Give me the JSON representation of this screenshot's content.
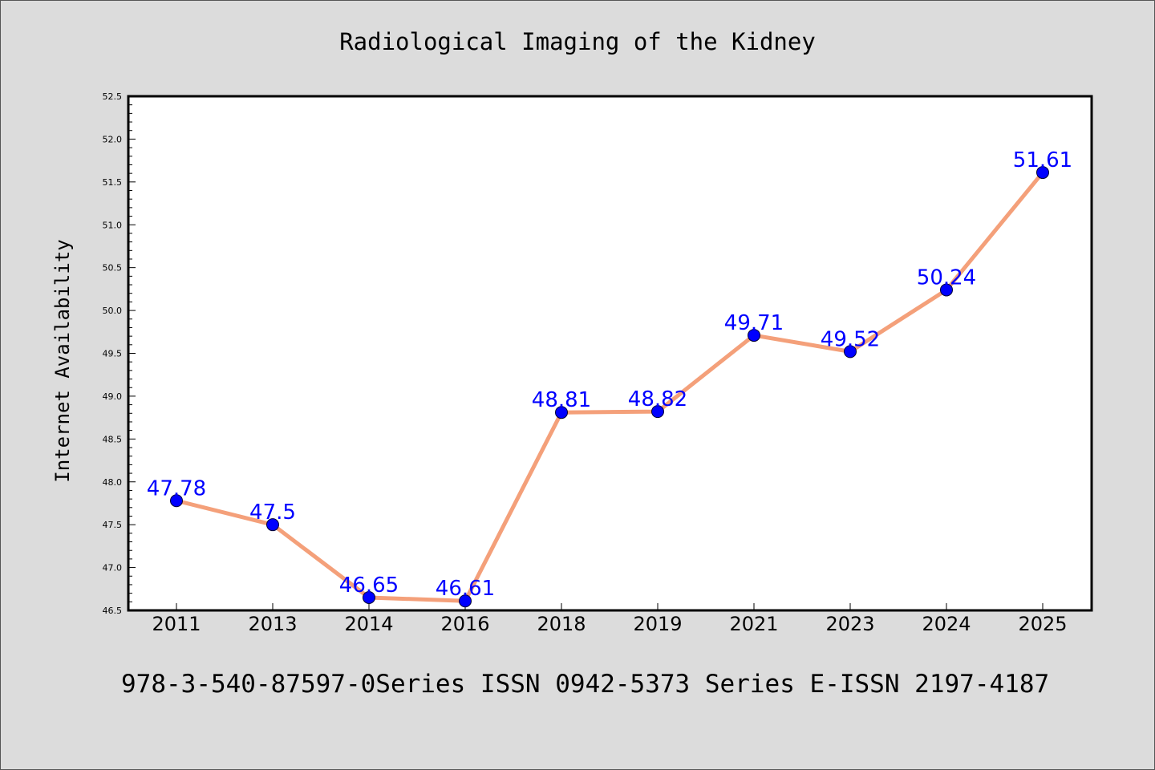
{
  "colors": {
    "background": "#dcdcdc",
    "plot_background": "#ffffff",
    "line": "#f4a07a",
    "marker": "#0000ff",
    "data_label": "#0000ff"
  },
  "footer": "978-3-540-87597-0Series ISSN 0942-5373 Series E-ISSN 2197-4187",
  "chart_data": {
    "type": "line",
    "title": "Radiological Imaging of the Kidney",
    "xlabel": "",
    "ylabel": "Internet Availability",
    "categories": [
      "2011",
      "2013",
      "2014",
      "2016",
      "2018",
      "2019",
      "2021",
      "2023",
      "2024",
      "2025"
    ],
    "values": [
      47.78,
      47.5,
      46.65,
      46.61,
      48.81,
      48.82,
      49.71,
      49.52,
      50.24,
      51.61
    ],
    "data_labels": [
      "47.78",
      "47.5",
      "46.65",
      "46.61",
      "48.81",
      "48.82",
      "49.71",
      "49.52",
      "50.24",
      "51.61"
    ],
    "ylim": [
      46.5,
      52.5
    ],
    "yticks": [
      "46.5",
      "47.0",
      "47.5",
      "48.0",
      "48.5",
      "49.0",
      "49.5",
      "50.0",
      "50.5",
      "51.0",
      "51.5",
      "52.0",
      "52.5"
    ],
    "grid": false,
    "legend": false,
    "marker": "circle"
  }
}
